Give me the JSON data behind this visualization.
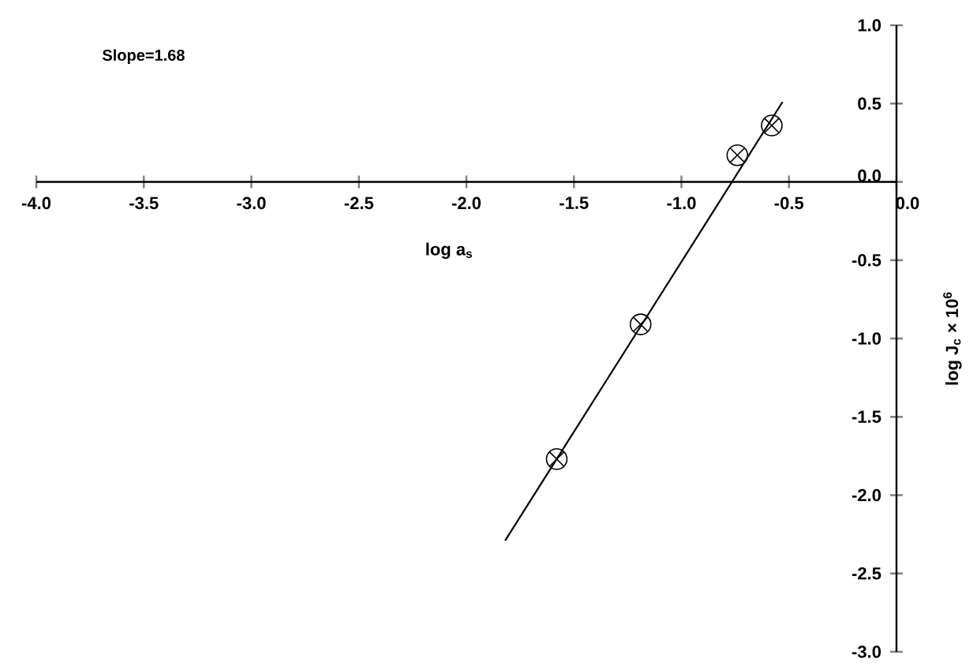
{
  "chart_data": {
    "type": "line",
    "xlabel": "log a$_{s}$",
    "ylabel": "log J$_{c}$ × 10$^{6}$",
    "annotations": [
      "Slope=1.68"
    ],
    "xlim": [
      -4.0,
      0.0
    ],
    "ylim": [
      -3.0,
      1.0
    ],
    "xticks": [
      {
        "value": -4.0,
        "label": "-4.0"
      },
      {
        "value": -3.5,
        "label": "-3.5"
      },
      {
        "value": -3.0,
        "label": "-3.0"
      },
      {
        "value": -2.5,
        "label": "-2.5"
      },
      {
        "value": -2.0,
        "label": "-2.0"
      },
      {
        "value": -1.5,
        "label": "-1.5"
      },
      {
        "value": -1.0,
        "label": "-1.0"
      },
      {
        "value": -0.5,
        "label": "-0.5"
      },
      {
        "value": 0.0,
        "label": "0.0"
      }
    ],
    "yticks": [
      {
        "value": -3.0,
        "label": "-3.0"
      },
      {
        "value": -2.5,
        "label": "-2.5"
      },
      {
        "value": -2.0,
        "label": "-2.0"
      },
      {
        "value": -1.5,
        "label": "-1.5"
      },
      {
        "value": -1.0,
        "label": "-1.0"
      },
      {
        "value": -0.5,
        "label": "-0.5"
      },
      {
        "value": 0.0,
        "label": "0.0"
      },
      {
        "value": 0.5,
        "label": "0.5"
      },
      {
        "value": 1.0,
        "label": "1.0"
      }
    ],
    "series": [
      {
        "type": "scatter",
        "marker": "cross",
        "color": "#000000",
        "x": [
          -1.58,
          -1.19,
          -0.74,
          -0.58
        ],
        "values": [
          -1.77,
          -0.91,
          0.17,
          0.36
        ]
      },
      {
        "color": "#000000",
        "x": [
          -1.82,
          -0.53
        ],
        "values": [
          -2.29,
          0.51
        ]
      }
    ]
  }
}
